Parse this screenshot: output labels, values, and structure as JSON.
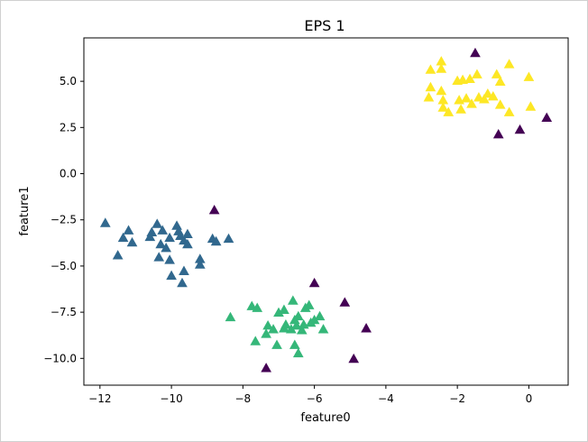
{
  "chart_data": {
    "type": "scatter",
    "title": "EPS 1",
    "xlabel": "feature0",
    "ylabel": "feature1",
    "xlim": [
      -12.45,
      1.1
    ],
    "ylim": [
      -11.45,
      7.35
    ],
    "xticks": [
      -12,
      -10,
      -8,
      -6,
      -4,
      -2,
      0
    ],
    "yticks": [
      -10.0,
      -7.5,
      -5.0,
      -2.5,
      0.0,
      2.5,
      5.0
    ],
    "xtick_labels": [
      "−12",
      "−10",
      "−8",
      "−6",
      "−4",
      "−2",
      "0"
    ],
    "ytick_labels": [
      "−10.0",
      "−7.5",
      "−5.0",
      "−2.5",
      "0.0",
      "2.5",
      "5.0"
    ],
    "marker": "triangle",
    "grid": false,
    "series": [
      {
        "color": "#440154",
        "points": [
          [
            -8.8,
            -2.0
          ],
          [
            -1.5,
            6.5
          ],
          [
            -0.85,
            2.1
          ],
          [
            -0.25,
            2.35
          ],
          [
            0.5,
            3.0
          ],
          [
            -6.0,
            -5.95
          ],
          [
            -5.15,
            -7.0
          ],
          [
            -4.55,
            -8.4
          ],
          [
            -4.9,
            -10.05
          ],
          [
            -7.35,
            -10.55
          ]
        ]
      },
      {
        "color": "#31688e",
        "points": [
          [
            -11.85,
            -2.7
          ],
          [
            -11.2,
            -3.1
          ],
          [
            -11.35,
            -3.5
          ],
          [
            -11.1,
            -3.75
          ],
          [
            -11.5,
            -4.45
          ],
          [
            -10.6,
            -3.45
          ],
          [
            -10.55,
            -3.2
          ],
          [
            -10.4,
            -2.75
          ],
          [
            -10.25,
            -3.1
          ],
          [
            -10.05,
            -3.5
          ],
          [
            -10.3,
            -3.85
          ],
          [
            -10.15,
            -4.05
          ],
          [
            -10.35,
            -4.55
          ],
          [
            -10.05,
            -4.7
          ],
          [
            -10.0,
            -5.55
          ],
          [
            -9.85,
            -2.85
          ],
          [
            -9.8,
            -3.15
          ],
          [
            -9.75,
            -3.4
          ],
          [
            -9.55,
            -3.3
          ],
          [
            -9.65,
            -3.65
          ],
          [
            -9.55,
            -3.85
          ],
          [
            -9.2,
            -4.65
          ],
          [
            -9.2,
            -4.95
          ],
          [
            -9.65,
            -5.3
          ],
          [
            -9.7,
            -5.95
          ],
          [
            -8.85,
            -3.55
          ],
          [
            -8.75,
            -3.7
          ],
          [
            -8.4,
            -3.55
          ]
        ]
      },
      {
        "color": "#35b779",
        "points": [
          [
            -8.35,
            -7.8
          ],
          [
            -7.75,
            -7.2
          ],
          [
            -7.6,
            -7.3
          ],
          [
            -7.65,
            -9.1
          ],
          [
            -7.3,
            -8.25
          ],
          [
            -7.35,
            -8.7
          ],
          [
            -7.15,
            -8.45
          ],
          [
            -7.05,
            -9.3
          ],
          [
            -7.0,
            -7.55
          ],
          [
            -6.85,
            -7.4
          ],
          [
            -6.85,
            -8.4
          ],
          [
            -6.8,
            -8.2
          ],
          [
            -6.65,
            -8.45
          ],
          [
            -6.6,
            -6.9
          ],
          [
            -6.55,
            -7.95
          ],
          [
            -6.5,
            -8.25
          ],
          [
            -6.45,
            -7.75
          ],
          [
            -6.35,
            -8.5
          ],
          [
            -6.3,
            -8.2
          ],
          [
            -6.25,
            -7.3
          ],
          [
            -6.15,
            -7.15
          ],
          [
            -6.1,
            -8.1
          ],
          [
            -6.0,
            -7.95
          ],
          [
            -5.85,
            -7.75
          ],
          [
            -5.75,
            -8.45
          ],
          [
            -6.55,
            -9.3
          ],
          [
            -6.45,
            -9.75
          ]
        ]
      },
      {
        "color": "#fde725",
        "points": [
          [
            -2.75,
            5.6
          ],
          [
            -2.75,
            4.65
          ],
          [
            -2.8,
            4.1
          ],
          [
            -2.45,
            5.65
          ],
          [
            -2.45,
            6.05
          ],
          [
            -2.45,
            4.45
          ],
          [
            -2.4,
            3.95
          ],
          [
            -2.4,
            3.55
          ],
          [
            -2.25,
            3.3
          ],
          [
            -2.0,
            5.0
          ],
          [
            -1.95,
            3.95
          ],
          [
            -1.9,
            3.45
          ],
          [
            -1.75,
            4.05
          ],
          [
            -1.65,
            5.1
          ],
          [
            -1.6,
            3.75
          ],
          [
            -1.45,
            5.35
          ],
          [
            -1.4,
            4.1
          ],
          [
            -1.25,
            4.0
          ],
          [
            -1.15,
            4.3
          ],
          [
            -0.9,
            5.35
          ],
          [
            -0.8,
            4.95
          ],
          [
            -0.8,
            3.7
          ],
          [
            -0.55,
            3.3
          ],
          [
            -0.55,
            5.9
          ],
          [
            -1.85,
            5.05
          ],
          [
            0.0,
            5.2
          ],
          [
            0.05,
            3.6
          ],
          [
            -1.0,
            4.15
          ]
        ]
      }
    ]
  }
}
